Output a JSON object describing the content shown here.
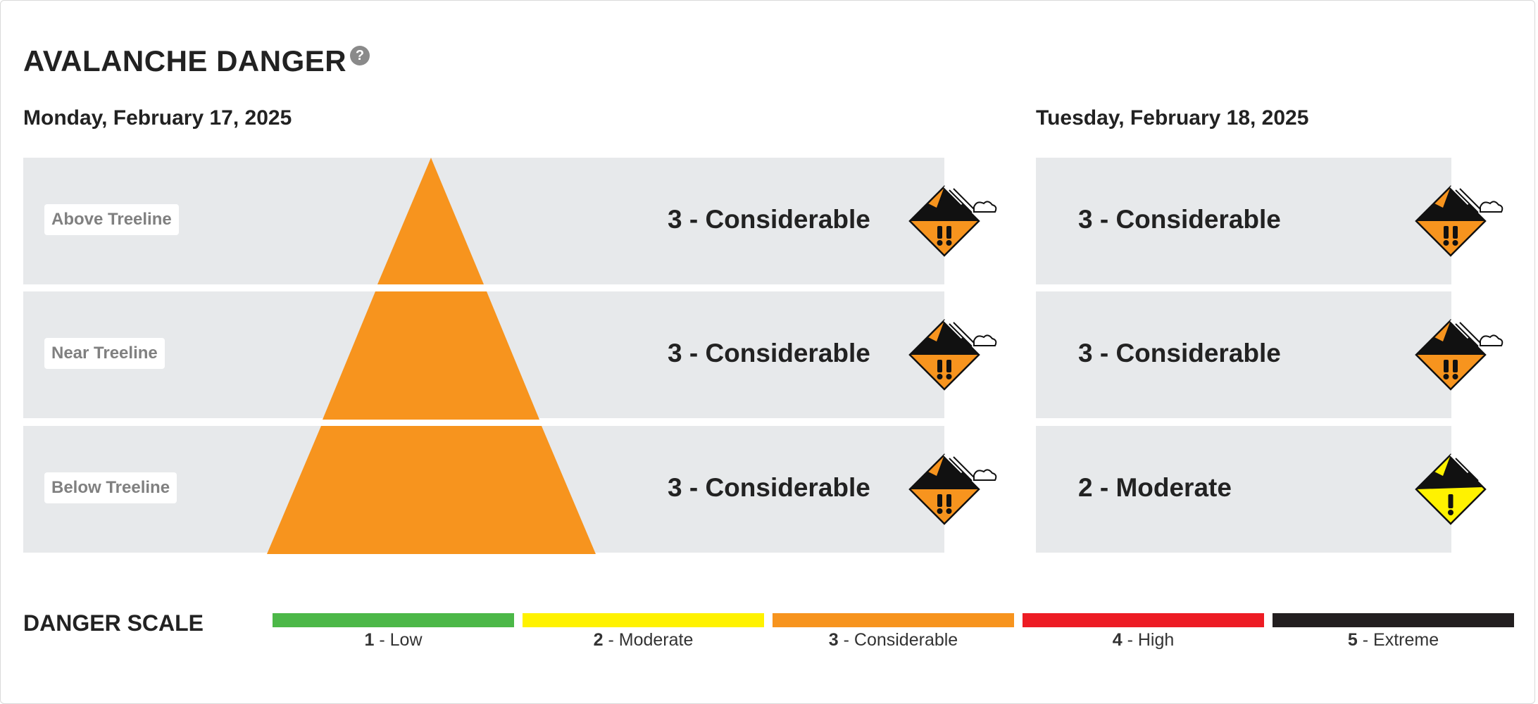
{
  "header": {
    "title": "AVALANCHE DANGER",
    "help_glyph": "?"
  },
  "days": [
    {
      "date": "Monday, February 17, 2025",
      "rows": [
        {
          "elevation": "Above Treeline",
          "rating": "3 - Considerable",
          "level": 3,
          "icon": "danger-3-considerable-icon"
        },
        {
          "elevation": "Near Treeline",
          "rating": "3 - Considerable",
          "level": 3,
          "icon": "danger-3-considerable-icon"
        },
        {
          "elevation": "Below Treeline",
          "rating": "3 - Considerable",
          "level": 3,
          "icon": "danger-3-considerable-icon"
        }
      ]
    },
    {
      "date": "Tuesday, February 18, 2025",
      "rows": [
        {
          "rating": "3 - Considerable",
          "level": 3,
          "icon": "danger-3-considerable-icon"
        },
        {
          "rating": "3 - Considerable",
          "level": 3,
          "icon": "danger-3-considerable-icon"
        },
        {
          "rating": "2 - Moderate",
          "level": 2,
          "icon": "danger-2-moderate-icon"
        }
      ]
    }
  ],
  "scale": {
    "title": "DANGER SCALE",
    "levels": [
      {
        "num": "1",
        "name": "- Low",
        "color": "#4cb848"
      },
      {
        "num": "2",
        "name": "- Moderate",
        "color": "#fff200"
      },
      {
        "num": "3",
        "name": "- Considerable",
        "color": "#f7941e"
      },
      {
        "num": "4",
        "name": "- High",
        "color": "#ed1c24"
      },
      {
        "num": "5",
        "name": "- Extreme",
        "color": "#231f20"
      }
    ]
  },
  "colors": {
    "row_bg": "#e7e9eb",
    "pyramid": "#f7941e"
  }
}
